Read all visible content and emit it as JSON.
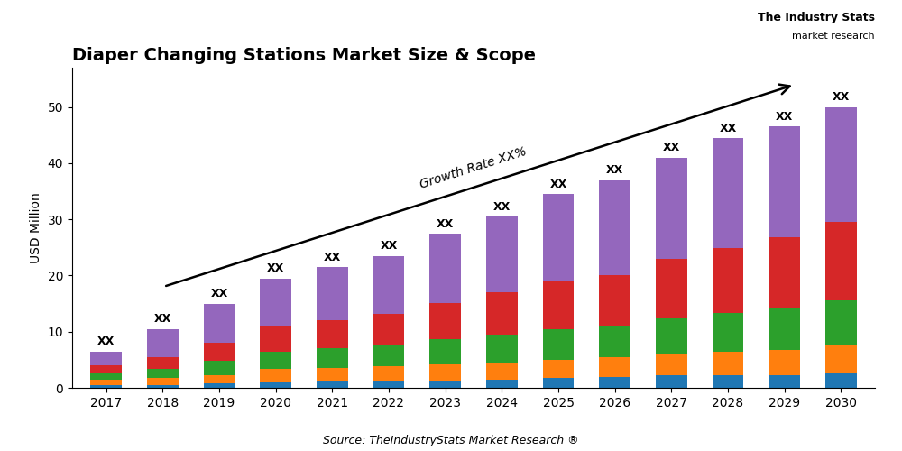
{
  "chart_data": {
    "type": "bar",
    "stacked": true,
    "title": "Diaper Changing Stations Market Size & Scope",
    "ylabel": "USD Million",
    "source": "Source: TheIndustryStats Market Research ®",
    "logo_text": "The Industry Stats",
    "logo_subtext": "market research",
    "annotation": "Growth Rate XX%",
    "categories": [
      "2017",
      "2018",
      "2019",
      "2020",
      "2021",
      "2022",
      "2023",
      "2024",
      "2025",
      "2026",
      "2027",
      "2028",
      "2029",
      "2030"
    ],
    "series": [
      {
        "values": [
          0.5,
          0.5,
          0.8,
          1.2,
          1.3,
          1.3,
          1.3,
          1.5,
          1.8,
          2.0,
          2.2,
          2.2,
          2.3,
          2.5
        ]
      },
      {
        "values": [
          0.9,
          1.2,
          1.5,
          2.1,
          2.3,
          2.5,
          2.8,
          3.0,
          3.2,
          3.5,
          3.8,
          4.2,
          4.5,
          5.0
        ]
      },
      {
        "values": [
          1.2,
          1.6,
          2.5,
          3.2,
          3.5,
          3.8,
          4.5,
          5.0,
          5.5,
          5.5,
          6.5,
          7.0,
          7.5,
          8.0
        ]
      },
      {
        "values": [
          1.4,
          2.2,
          3.2,
          4.5,
          5.0,
          5.5,
          6.5,
          7.5,
          8.5,
          9.0,
          10.5,
          11.5,
          12.5,
          14.0
        ]
      },
      {
        "values": [
          2.5,
          5.0,
          7.0,
          8.5,
          9.4,
          10.4,
          12.4,
          13.5,
          15.5,
          17.0,
          18.0,
          19.6,
          19.7,
          20.5
        ]
      }
    ],
    "totals": [
      6.5,
      10.5,
      15.0,
      19.5,
      21.5,
      23.5,
      27.5,
      30.5,
      34.5,
      37.0,
      41.0,
      44.5,
      46.5,
      50.0
    ],
    "total_labels": [
      "XX",
      "XX",
      "XX",
      "XX",
      "XX",
      "XX",
      "XX",
      "XX",
      "XX",
      "XX",
      "XX",
      "XX",
      "XX",
      "XX"
    ],
    "ylim": [
      0,
      57
    ],
    "yticks": [
      0,
      10,
      20,
      30,
      40,
      50
    ],
    "grid": false
  }
}
